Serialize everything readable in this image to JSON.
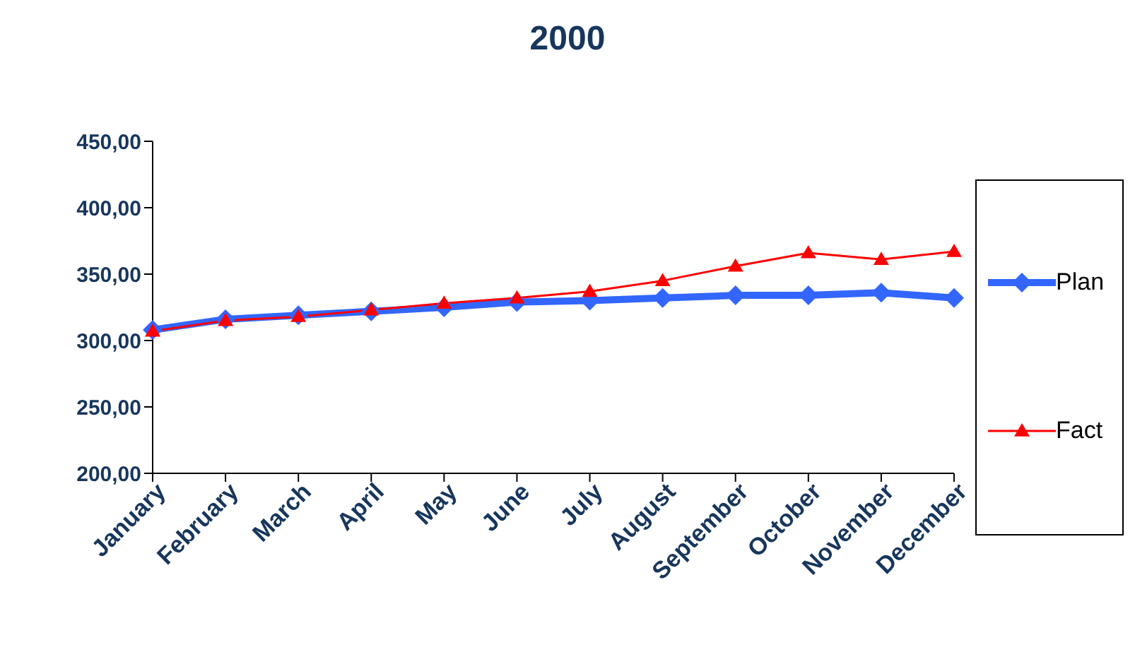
{
  "chart_data": {
    "type": "line",
    "title": "2000",
    "categories": [
      "January",
      "February",
      "March",
      "April",
      "May",
      "June",
      "July",
      "August",
      "September",
      "October",
      "November",
      "December"
    ],
    "series": [
      {
        "name": "Plan",
        "color": "#3366ff",
        "marker": "diamond",
        "values": [
          308,
          316,
          319,
          322,
          325,
          329,
          330,
          332,
          334,
          334,
          336,
          332
        ]
      },
      {
        "name": "Fact",
        "color": "#ff0000",
        "marker": "triangle",
        "values": [
          307,
          315,
          318,
          323,
          328,
          332,
          337,
          345,
          356,
          366,
          361,
          367
        ]
      }
    ],
    "ylim": [
      200,
      450
    ],
    "yticks": [
      {
        "value": 200,
        "label": "200,00"
      },
      {
        "value": 250,
        "label": "250,00"
      },
      {
        "value": 300,
        "label": "300,00"
      },
      {
        "value": 350,
        "label": "350,00"
      },
      {
        "value": 400,
        "label": "400,00"
      },
      {
        "value": 450,
        "label": "450,00"
      }
    ],
    "grid": false,
    "legend": "right"
  }
}
